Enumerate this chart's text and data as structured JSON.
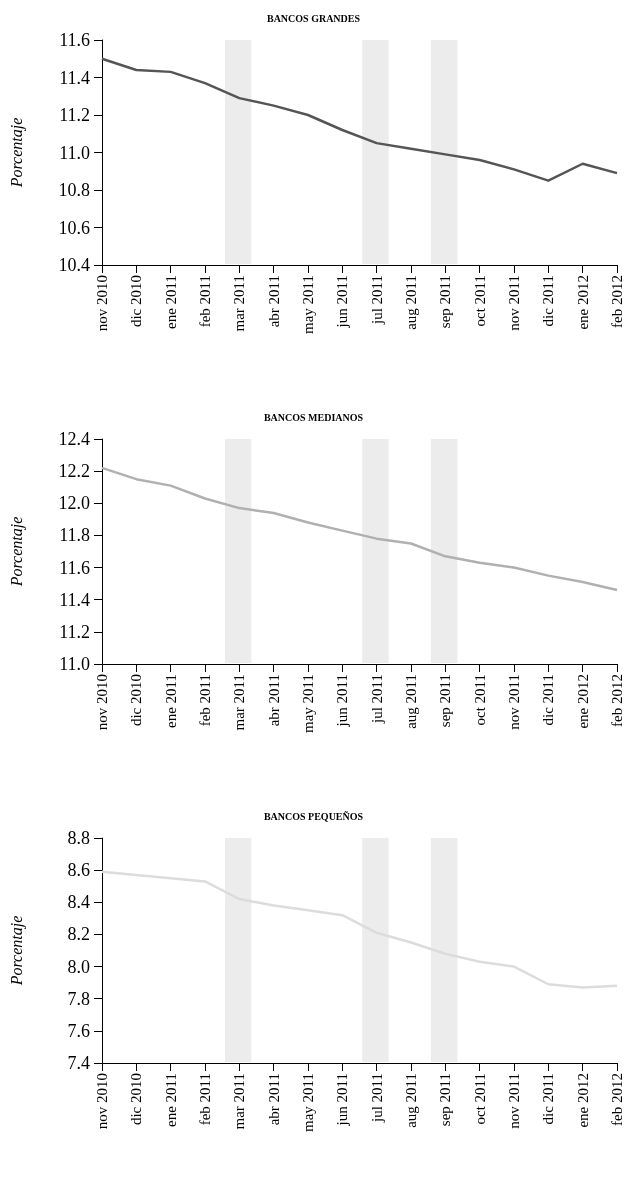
{
  "chart_data": [
    {
      "type": "line",
      "title": "BANCOS GRANDES",
      "ylabel": "Porcentaje",
      "categories": [
        "nov 2010",
        "dic 2010",
        "ene 2011",
        "feb 2011",
        "mar 2011",
        "abr 2011",
        "may 2011",
        "jun 2011",
        "jul 2011",
        "aug 2011",
        "sep 2011",
        "oct 2011",
        "nov 2011",
        "dic 2011",
        "ene 2012",
        "feb 2012"
      ],
      "series": [
        {
          "color": "#555555",
          "values": [
            11.5,
            11.44,
            11.43,
            11.37,
            11.29,
            11.25,
            11.2,
            11.12,
            11.05,
            11.02,
            10.99,
            10.96,
            10.91,
            10.85,
            10.94,
            10.89
          ]
        }
      ],
      "ylim": [
        10.4,
        11.6
      ],
      "yticks": [
        10.4,
        10.6,
        10.8,
        {
          "value": 11,
          "label": "11.0"
        },
        11.2,
        11.4,
        11.6
      ],
      "grid": false,
      "marker": "none",
      "bands": [
        {
          "axis": "x",
          "from": "mar 2011",
          "to": "mar 2011",
          "color": "#ececec"
        },
        {
          "axis": "x",
          "from": "jul 2011",
          "to": "jul 2011",
          "color": "#ececec"
        },
        {
          "axis": "x",
          "from": "sep 2011",
          "to": "sep 2011",
          "color": "#ececec"
        }
      ]
    },
    {
      "type": "line",
      "title": "BANCOS MEDIANOS",
      "ylabel": "Porcentaje",
      "categories": [
        "nov 2010",
        "dic 2010",
        "ene 2011",
        "feb 2011",
        "mar 2011",
        "abr 2011",
        "may 2011",
        "jun 2011",
        "jul 2011",
        "aug 2011",
        "sep 2011",
        "oct 2011",
        "nov 2011",
        "dic 2011",
        "ene 2012",
        "feb 2012"
      ],
      "series": [
        {
          "color": "#b0b0b0",
          "values": [
            12.22,
            12.15,
            12.11,
            12.03,
            11.97,
            11.94,
            11.88,
            11.83,
            11.78,
            11.75,
            11.67,
            11.63,
            11.6,
            11.55,
            11.51,
            11.46
          ]
        }
      ],
      "ylim": [
        11.0,
        12.4
      ],
      "yticks": [
        {
          "value": 11,
          "label": "11.0"
        },
        11.2,
        11.4,
        11.6,
        11.8,
        {
          "value": 12,
          "label": "12.0"
        },
        12.2,
        12.4
      ],
      "grid": false,
      "marker": "none",
      "bands": [
        {
          "axis": "x",
          "from": "mar 2011",
          "to": "mar 2011",
          "color": "#ececec"
        },
        {
          "axis": "x",
          "from": "jul 2011",
          "to": "jul 2011",
          "color": "#ececec"
        },
        {
          "axis": "x",
          "from": "sep 2011",
          "to": "sep 2011",
          "color": "#ececec"
        }
      ]
    },
    {
      "type": "line",
      "title": "BANCOS PEQUEÑOS",
      "ylabel": "Porcentaje",
      "categories": [
        "nov 2010",
        "dic 2010",
        "ene 2011",
        "feb 2011",
        "mar 2011",
        "abr 2011",
        "may 2011",
        "jun 2011",
        "jul 2011",
        "aug 2011",
        "sep 2011",
        "oct 2011",
        "nov 2011",
        "dic 2011",
        "ene 2012",
        "feb 2012"
      ],
      "series": [
        {
          "color": "#dcdcdc",
          "values": [
            8.59,
            8.57,
            8.55,
            8.53,
            8.42,
            8.38,
            8.35,
            8.32,
            8.21,
            8.15,
            8.08,
            8.03,
            8.0,
            7.89,
            7.87,
            7.88
          ]
        }
      ],
      "ylim": [
        7.4,
        8.8
      ],
      "yticks": [
        7.4,
        7.6,
        7.8,
        {
          "value": 8,
          "label": "8.0"
        },
        8.2,
        8.4,
        8.6,
        8.8
      ],
      "grid": false,
      "marker": "none",
      "bands": [
        {
          "axis": "x",
          "from": "mar 2011",
          "to": "mar 2011",
          "color": "#ececec"
        },
        {
          "axis": "x",
          "from": "jul 2011",
          "to": "jul 2011",
          "color": "#ececec"
        },
        {
          "axis": "x",
          "from": "sep 2011",
          "to": "sep 2011",
          "color": "#ececec"
        }
      ]
    }
  ]
}
